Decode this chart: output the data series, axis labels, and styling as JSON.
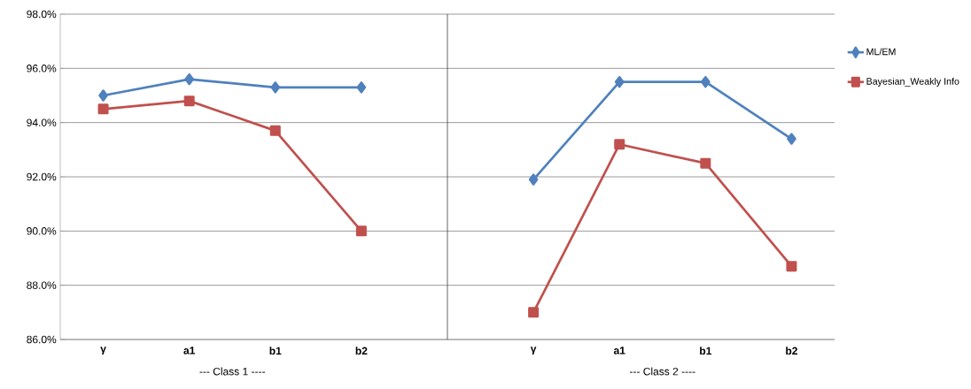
{
  "chart_data": [
    {
      "type": "line",
      "categories": [
        "γ",
        "a1",
        "b1",
        "b2"
      ],
      "series": [
        {
          "color": "#4f81bd",
          "marker": "diamond",
          "values": [
            95.0,
            95.6,
            95.3,
            95.3
          ]
        },
        {
          "color": "#c0504d",
          "marker": "square",
          "values": [
            94.5,
            94.8,
            93.7,
            90.0
          ]
        }
      ],
      "ylim": [
        86,
        98
      ],
      "yticks": [
        {
          "value": 86,
          "label": "86.0%"
        },
        {
          "value": 88,
          "label": "88.0%"
        },
        {
          "value": 90,
          "label": "90.0%"
        },
        {
          "value": 92,
          "label": "92.0%"
        },
        {
          "value": 94,
          "label": "94.0%"
        },
        {
          "value": 96,
          "label": "96.0%"
        },
        {
          "value": 98,
          "label": "98.0%"
        }
      ],
      "grid": "y",
      "annotations": [
        "---  Class  1 ----"
      ]
    },
    {
      "type": "line",
      "categories": [
        "γ",
        "a1",
        "b1",
        "b2"
      ],
      "series": [
        {
          "name": "ML/EM",
          "color": "#4f81bd",
          "marker": "diamond",
          "values": [
            91.9,
            95.5,
            95.5,
            93.4
          ]
        },
        {
          "name": "Bayesian_Weakly Info",
          "color": "#c0504d",
          "marker": "square",
          "values": [
            87.0,
            93.2,
            92.5,
            88.7
          ]
        }
      ],
      "ylim": [
        86,
        98
      ],
      "yticks": [
        86,
        88,
        90,
        92,
        94,
        96,
        98
      ],
      "tick_labels": "x",
      "grid": "y",
      "legend": "right",
      "annotations": [
        "---  Class  2 ----"
      ]
    }
  ]
}
